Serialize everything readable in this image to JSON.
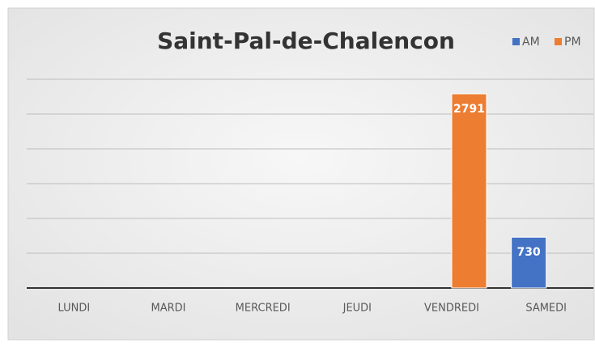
{
  "chart_data": {
    "type": "bar",
    "title": "Saint-Pal-de-Chalencon",
    "categories": [
      "LUNDI",
      "MARDI",
      "MERCREDI",
      "JEUDI",
      "VENDREDI",
      "SAMEDI"
    ],
    "series": [
      {
        "name": "AM",
        "color": "#4472c4",
        "values": [
          null,
          null,
          null,
          null,
          null,
          730
        ]
      },
      {
        "name": "PM",
        "color": "#ed7d31",
        "values": [
          null,
          null,
          null,
          null,
          2791,
          null
        ]
      }
    ],
    "ylim": [
      0,
      3000
    ],
    "yticks": [
      0,
      500,
      1000,
      1500,
      2000,
      2500,
      3000
    ],
    "grid": true,
    "legend": "top-right"
  }
}
